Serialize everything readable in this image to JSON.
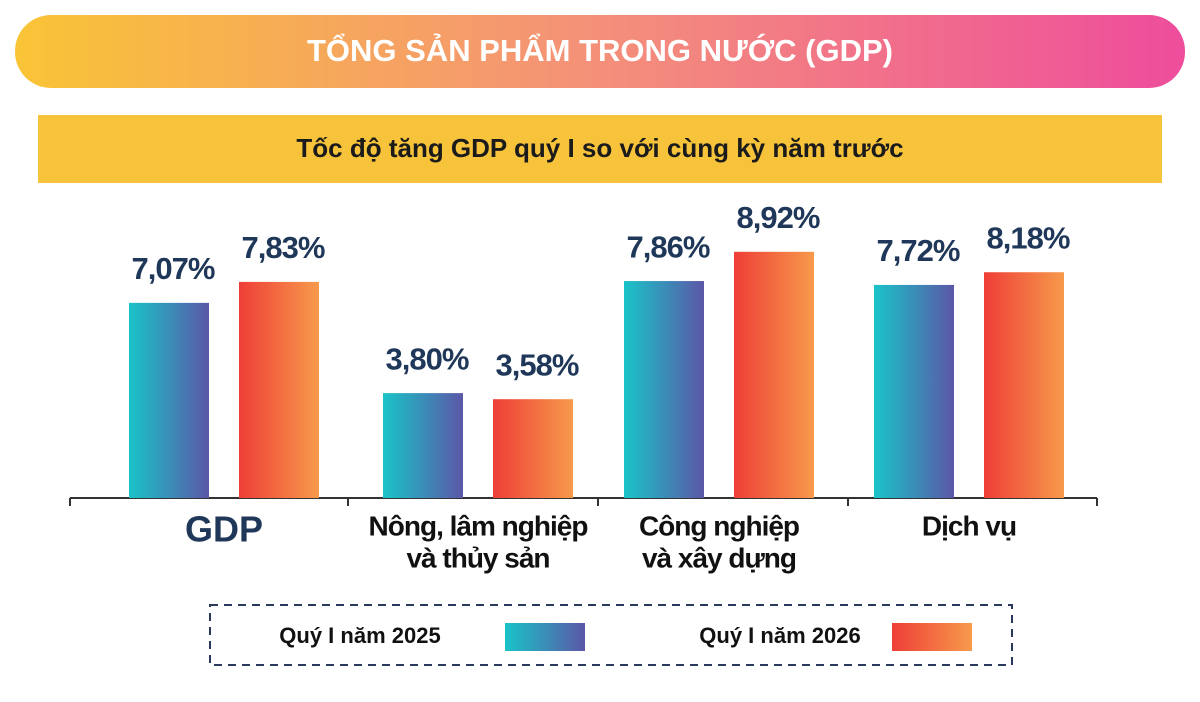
{
  "chart_data": {
    "type": "bar",
    "title": "TỔNG SẢN PHẨM TRONG NƯỚC (GDP)",
    "subtitle": "Tốc độ tăng GDP quý I so với cùng kỳ năm trước",
    "categories": [
      [
        "GDP"
      ],
      [
        "Nông, lâm nghiệp",
        "và thủy sản"
      ],
      [
        "Công nghiệp",
        "và xây dựng"
      ],
      [
        "Dịch vụ"
      ]
    ],
    "series": [
      {
        "name": "Quý I năm 2025",
        "color": [
          "#19c4c8",
          "#5b57a7"
        ],
        "values": [
          7.07,
          3.8,
          7.86,
          7.72
        ],
        "value_labels": [
          "7,07%",
          "3,80%",
          "7,86%",
          "7,72%"
        ]
      },
      {
        "name": "Quý I năm 2026",
        "color": [
          "#ee3e37",
          "#f79a4b"
        ],
        "values": [
          7.83,
          3.58,
          8.92,
          8.18
        ],
        "value_labels": [
          "7,83%",
          "3,58%",
          "8,92%",
          "8,18%"
        ]
      }
    ]
  }
}
